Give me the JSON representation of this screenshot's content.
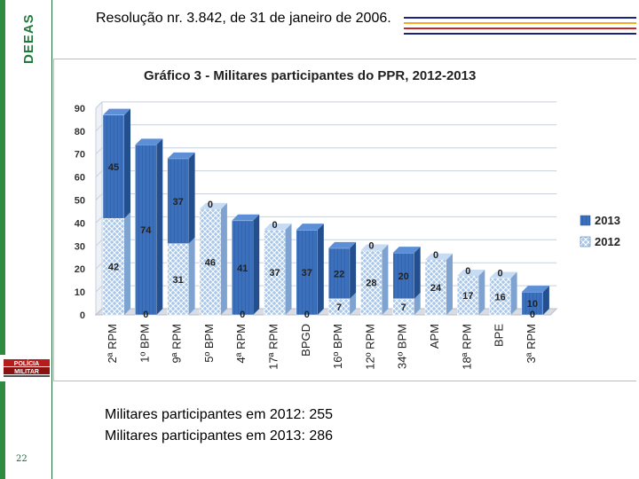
{
  "sidebar": {
    "title": "DEEAS",
    "page_number": "22",
    "logo_text": "POLÍCIA MILITAR"
  },
  "header": {
    "text": "Resolução  nr. 3.842, de 31 de janeiro de 2006."
  },
  "colors": {
    "s2013": "#3a70be",
    "s2012": "#a9c7ea",
    "green": "#2e8b3f",
    "line1": "#1a237e",
    "line2": "#f9a825",
    "line3": "#c62828"
  },
  "chart_data": {
    "type": "bar",
    "stacked": true,
    "title": "Gráfico 3 - Militares participantes do PPR, 2012-2013",
    "categories": [
      "2ª RPM",
      "1º BPM",
      "9ª RPM",
      "5º BPM",
      "4ª RPM",
      "17ª RPM",
      "BPGD",
      "16º BPM",
      "12º RPM",
      "34º BPM",
      "APM",
      "18ª RPM",
      "BPE",
      "3ª RPM"
    ],
    "series": [
      {
        "name": "2012",
        "values": [
          42,
          0,
          31,
          46,
          0,
          37,
          0,
          7,
          28,
          7,
          24,
          17,
          16,
          0
        ]
      },
      {
        "name": "2013",
        "values": [
          45,
          74,
          37,
          0,
          41,
          0,
          37,
          22,
          0,
          20,
          0,
          0,
          0,
          10
        ]
      }
    ],
    "yticks": [
      "0",
      "10",
      "20",
      "30",
      "40",
      "50",
      "60",
      "70",
      "80",
      "90"
    ],
    "ylim": [
      0,
      90
    ],
    "grid": true,
    "legend": "right"
  },
  "footer": {
    "line1": "Militares participantes em 2012: 255",
    "line2": "Militares participantes em 2013: 286"
  }
}
